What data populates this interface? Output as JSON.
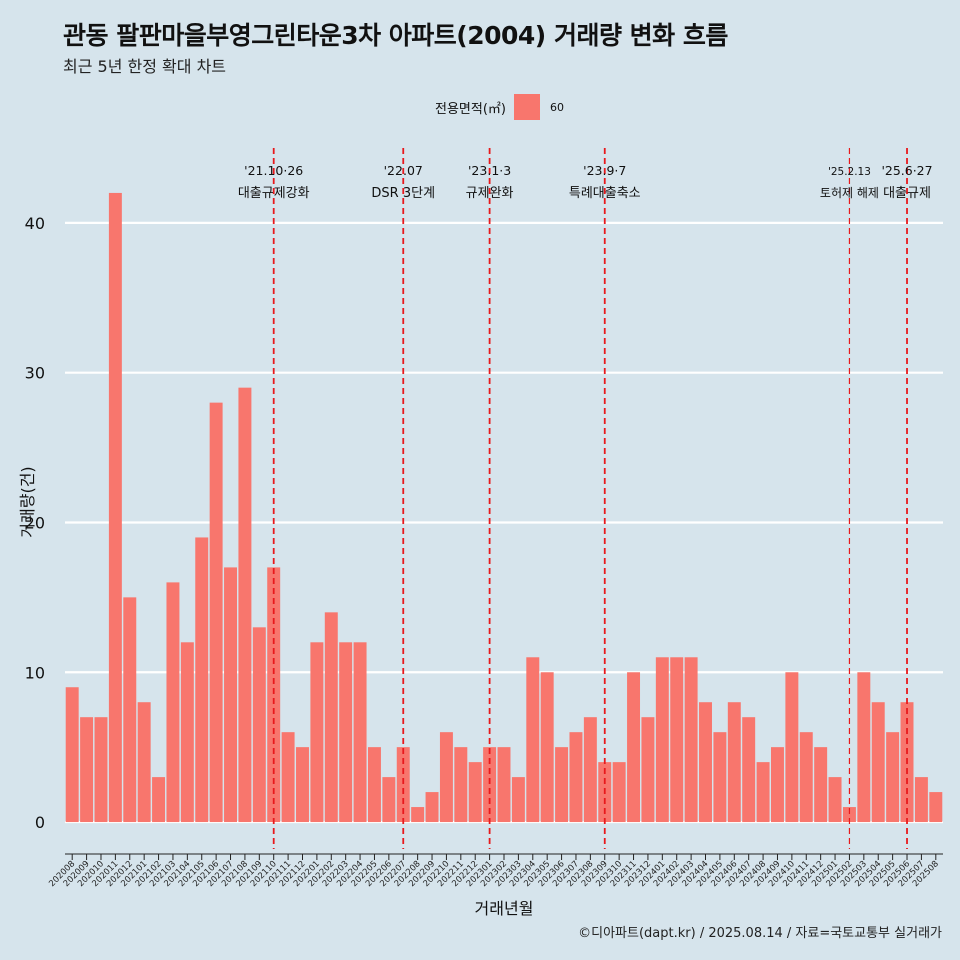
{
  "page": {
    "title": "관동 팔판마을부영그린타운3차 아파트(2004) 거래량 변화 흐름",
    "subtitle": "최근 5년 한정 확대 차트",
    "caption": "©디아파트(dapt.kr) / 2025.08.14 / 자료=국토교통부 실거래가"
  },
  "legend": {
    "title": "전용면적(㎡)",
    "items": [
      {
        "label": "60",
        "color": "#f8766d"
      }
    ]
  },
  "chart_data": {
    "type": "bar",
    "xlabel": "거래년월",
    "ylabel": "거래량(건)",
    "ylim": [
      -1.8,
      45
    ],
    "yticks": [
      0,
      10,
      20,
      30,
      40
    ],
    "grid": true,
    "legend_position": "top",
    "bar_color": "#f8766d",
    "categories": [
      "202008",
      "202009",
      "202010",
      "202011",
      "202012",
      "202101",
      "202102",
      "202103",
      "202104",
      "202105",
      "202106",
      "202107",
      "202108",
      "202109",
      "202110",
      "202111",
      "202112",
      "202201",
      "202202",
      "202203",
      "202204",
      "202205",
      "202206",
      "202207",
      "202208",
      "202209",
      "202210",
      "202211",
      "202212",
      "202301",
      "202302",
      "202303",
      "202304",
      "202305",
      "202306",
      "202307",
      "202308",
      "202309",
      "202310",
      "202311",
      "202312",
      "202401",
      "202402",
      "202403",
      "202404",
      "202405",
      "202406",
      "202407",
      "202408",
      "202409",
      "202410",
      "202411",
      "202412",
      "202501",
      "202502",
      "202503",
      "202504",
      "202505",
      "202506",
      "202507",
      "202508"
    ],
    "series": [
      {
        "values": [
          9,
          7,
          7,
          42,
          15,
          8,
          3,
          16,
          12,
          19,
          28,
          17,
          29,
          13,
          17,
          6,
          5,
          12,
          14,
          12,
          12,
          5,
          3,
          5,
          1,
          2,
          6,
          5,
          4,
          5,
          5,
          3,
          11,
          10,
          5,
          6,
          7,
          4,
          4,
          10,
          7,
          11,
          11,
          11,
          8,
          6,
          8,
          7,
          4,
          5,
          10,
          6,
          5,
          3,
          1,
          10,
          8,
          6,
          8,
          3,
          2
        ]
      }
    ],
    "annotations": [
      {
        "x": "202110",
        "date": "'21.10·26",
        "label": "대출규제강화"
      },
      {
        "x": "202207",
        "date": "'22.07",
        "label": "DSR 3단계"
      },
      {
        "x": "202301",
        "date": "'23.1·3",
        "label": "규제완화"
      },
      {
        "x": "202309",
        "date": "'23.9·7",
        "label": "특례대출축소"
      },
      {
        "x": "202502",
        "date": "'25.2.13",
        "label": "토허제 해제"
      },
      {
        "x": "202506",
        "date": "'25.6·27",
        "label": "대출규제"
      }
    ]
  }
}
